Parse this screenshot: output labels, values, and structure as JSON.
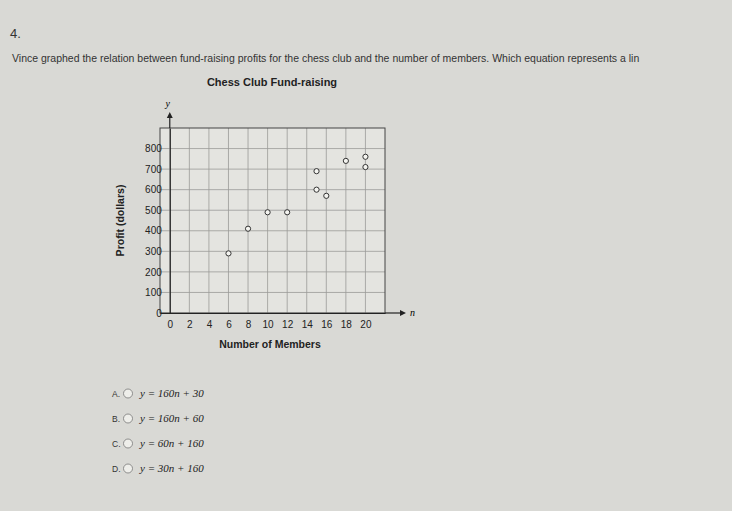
{
  "question": {
    "number": "4.",
    "text": "Vince graphed the relation between fund-raising profits for the chess club and the number of members. Which equation represents a lin",
    "choices": [
      {
        "letter": "A.",
        "equation": "y = 160n + 30"
      },
      {
        "letter": "B.",
        "equation": "y = 160n + 60"
      },
      {
        "letter": "C.",
        "equation": "y = 60n + 160"
      },
      {
        "letter": "D.",
        "equation": "y = 30n + 160"
      }
    ]
  },
  "chart_data": {
    "type": "scatter",
    "title": "Chess Club Fund-raising",
    "x_label": "Number of Members",
    "y_label": "Profit (dollars)",
    "axis_symbols": {
      "x": "n",
      "y": "y"
    },
    "x": [
      6,
      8,
      10,
      12,
      15,
      16,
      15,
      18,
      20,
      20
    ],
    "values": [
      290,
      410,
      490,
      490,
      600,
      570,
      690,
      740,
      760,
      710
    ],
    "xlim": [
      -1,
      22
    ],
    "xticks": [
      0,
      2,
      4,
      6,
      8,
      10,
      12,
      14,
      16,
      18,
      20
    ],
    "ylim": [
      0,
      900
    ],
    "yticks": [
      0,
      100,
      200,
      300,
      400,
      500,
      600,
      700,
      800
    ],
    "grid": true,
    "marker": "open-circle",
    "color": "#333333"
  }
}
